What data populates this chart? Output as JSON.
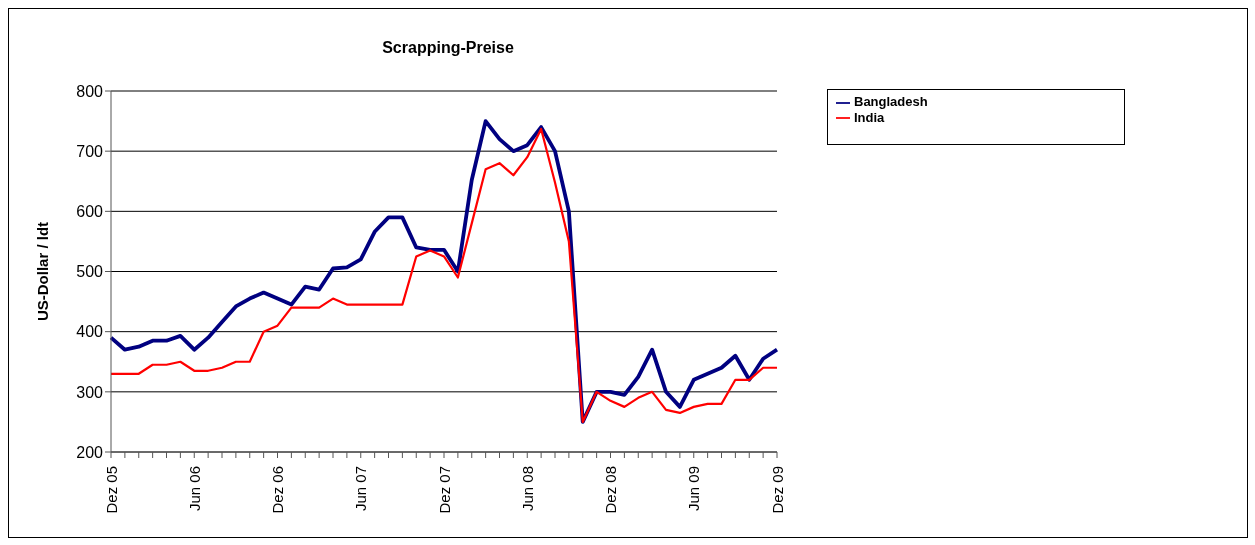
{
  "chart_data": {
    "type": "line",
    "title": "Scrapping-Preise",
    "ylabel": "US-Dollar / ldt",
    "categories": [
      "Dez 05",
      null,
      null,
      null,
      null,
      null,
      "Jun 06",
      null,
      null,
      null,
      null,
      null,
      "Dez 06",
      null,
      null,
      null,
      null,
      null,
      "Jun 07",
      null,
      null,
      null,
      null,
      null,
      "Dez 07",
      null,
      null,
      null,
      null,
      null,
      "Jun 08",
      null,
      null,
      null,
      null,
      null,
      "Dez 08",
      null,
      null,
      null,
      null,
      null,
      "Jun 09",
      null,
      null,
      null,
      null,
      null,
      "Dez 09"
    ],
    "series": [
      {
        "name": "Bangladesh",
        "color": "#000080",
        "values": [
          390,
          370,
          375,
          385,
          385,
          393,
          370,
          390,
          416,
          442,
          455,
          465,
          455,
          445,
          475,
          470,
          505,
          507,
          520,
          566,
          590,
          590,
          540,
          536,
          536,
          500,
          652,
          750,
          720,
          700,
          710,
          740,
          700,
          600,
          250,
          300,
          300,
          295,
          325,
          370,
          300,
          275,
          320,
          330,
          340,
          360,
          320,
          355,
          370
        ]
      },
      {
        "name": "India",
        "color": "#ff0000",
        "values": [
          330,
          330,
          330,
          345,
          345,
          350,
          335,
          335,
          340,
          350,
          350,
          400,
          410,
          440,
          440,
          440,
          455,
          445,
          445,
          445,
          445,
          445,
          525,
          535,
          525,
          490,
          580,
          670,
          680,
          660,
          690,
          737,
          648,
          550,
          250,
          300,
          285,
          275,
          290,
          300,
          270,
          265,
          275,
          280,
          280,
          320,
          320,
          340,
          340
        ]
      }
    ],
    "ylim": [
      200,
      800
    ],
    "yticks": [
      200,
      300,
      400,
      500,
      600,
      700,
      800
    ],
    "grid": "y",
    "legend": "top right",
    "marker": "none",
    "line_style": "solid"
  }
}
